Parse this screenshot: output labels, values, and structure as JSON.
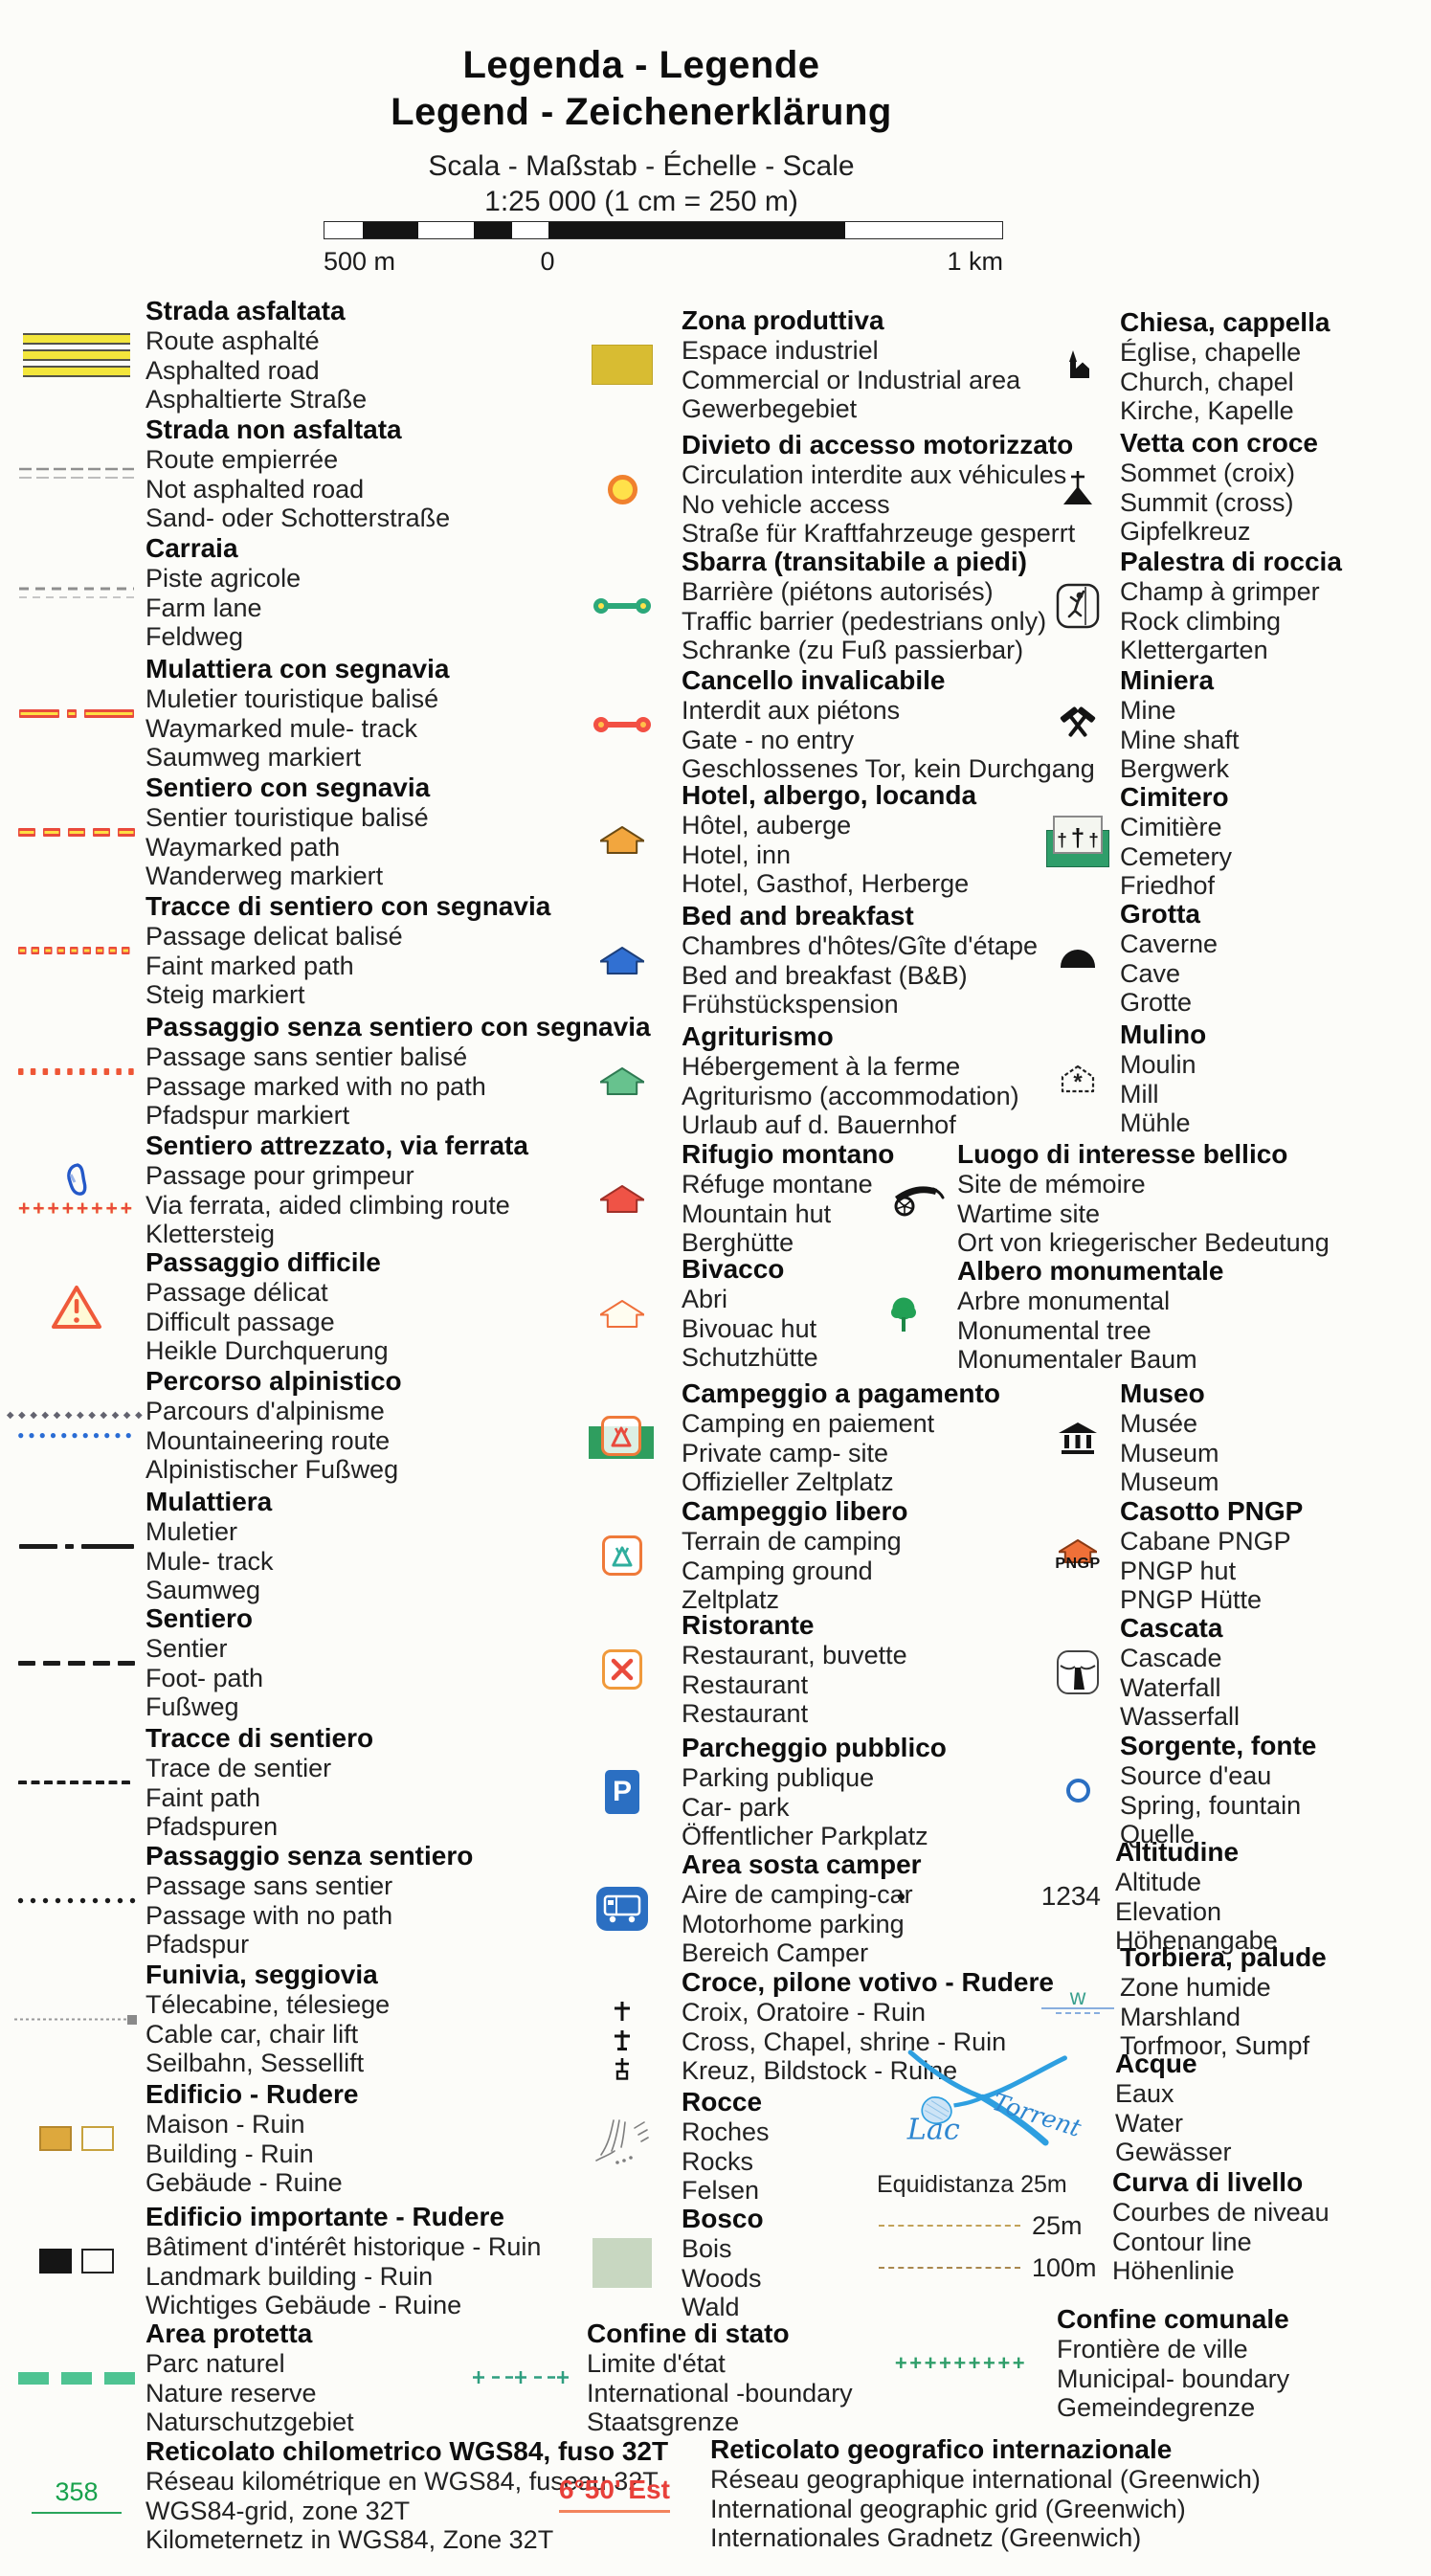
{
  "header": {
    "title_line1": "Legenda - Legende",
    "title_line2": "Legend - Zeichenerklärung",
    "scale_heading": "Scala - Maßstab - Échelle - Scale",
    "scale_value": "1:25 000 (1 cm = 250 m)"
  },
  "scalebar": {
    "label_left": "500 m",
    "label_zero": "0",
    "label_right": "1 km"
  },
  "accent_colors": {
    "trail_red": "#e94a3c",
    "trail_yellow": "#ffdf43",
    "road_yellow": "#f3e63c",
    "park_green": "#2f9e6a",
    "water_blue": "#2e9fe0",
    "sign_blue": "#2b6fc2",
    "grid_green": "#18a14c",
    "grid_red": "#e8403a",
    "hut_orange": "#ef7038"
  },
  "columns": [
    {
      "entries": [
        {
          "icon": "asphalt-road-symbol",
          "sym": "roadAsphalt",
          "title": "Strada asfaltata",
          "lines": [
            "Route asphalté",
            "Asphalted road",
            "Asphaltierte Straße"
          ]
        },
        {
          "icon": "unpaved-road-symbol",
          "sym": "roadUnpaved",
          "title": "Strada non asfaltata",
          "lines": [
            "Route empierrée",
            "Not asphalted road",
            "Sand- oder Schotterstraße"
          ]
        },
        {
          "icon": "farm-lane-symbol",
          "sym": "farmLane",
          "title": "Carraia",
          "lines": [
            "Piste agricole",
            "Farm lane",
            "Feldweg"
          ]
        },
        {
          "icon": "waymarked-mule-track-symbol",
          "sym": "muleMarked",
          "title": "Mulattiera con segnavia",
          "lines": [
            "Muletier touristique balisé",
            "Waymarked mule- track",
            "Saumweg markiert"
          ]
        },
        {
          "icon": "waymarked-path-symbol",
          "sym": "pathMarked",
          "title": "Sentiero con segnavia",
          "lines": [
            "Sentier touristique balisé",
            "Waymarked path",
            "Wanderweg markiert"
          ]
        },
        {
          "icon": "waymarked-faint-path-symbol",
          "sym": "faintMarked",
          "title": "Tracce di sentiero con segnavia",
          "lines": [
            "Passage delicat balisé",
            "Faint marked path",
            "Steig markiert"
          ]
        },
        {
          "icon": "waymarked-no-path-symbol",
          "sym": "noneMarked",
          "title": "Passaggio senza sentiero con segnavia",
          "lines": [
            "Passage sans sentier balisé",
            "Passage marked with no path",
            "Pfadspur markiert"
          ]
        },
        {
          "icon": "via-ferrata-carabiner-icon",
          "sym": "viaFerrata",
          "title": "Sentiero attrezzato, via ferrata",
          "lines": [
            "Passage pour grimpeur",
            "Via ferrata, aided climbing route",
            "Klettersteig"
          ]
        },
        {
          "icon": "warning-triangle-icon",
          "sym": "warnTriangle",
          "title": "Passaggio difficile",
          "lines": [
            "Passage délicat",
            "Difficult passage",
            "Heikle Durchquerung"
          ]
        },
        {
          "icon": "mountaineering-route-symbol",
          "sym": "alpineRoute",
          "title": "Percorso alpinistico",
          "lines": [
            "Parcours d'alpinisme",
            "Mountaineering route",
            "Alpinistischer Fußweg"
          ]
        },
        {
          "icon": "mule-track-symbol",
          "sym": "muleTrack",
          "title": "Mulattiera",
          "lines": [
            "Muletier",
            "Mule- track",
            "Saumweg"
          ]
        },
        {
          "icon": "footpath-symbol",
          "sym": "footPath",
          "title": "Sentiero",
          "lines": [
            "Sentier",
            "Foot- path",
            "Fußweg"
          ]
        },
        {
          "icon": "faint-path-symbol",
          "sym": "faintPath",
          "title": "Tracce di sentiero",
          "lines": [
            "Trace de sentier",
            "Faint path",
            "Pfadspuren"
          ]
        },
        {
          "icon": "no-path-symbol",
          "sym": "nonePath",
          "title": "Passaggio senza sentiero",
          "lines": [
            "Passage sans sentier",
            "Passage with no path",
            "Pfadspur"
          ]
        },
        {
          "icon": "cable-car-symbol",
          "sym": "cableCar",
          "title": "Funivia, seggiovia",
          "lines": [
            "Télecabine, télesiege",
            "Cable car, chair lift",
            "Seilbahn, Sessellift"
          ]
        },
        {
          "icon": "building-ruin-symbol",
          "sym": "ruinPair",
          "title": "Edificio - Rudere",
          "lines": [
            "Maison - Ruin",
            "Building - Ruin",
            "Gebäude - Ruine"
          ]
        },
        {
          "icon": "landmark-building-ruin-symbol",
          "sym": "ruinPairDark",
          "title": "Edificio importante - Rudere",
          "lines": [
            "Bâtiment d'intérêt historique - Ruin",
            "Landmark building - Ruin",
            "Wichtiges Gebäude - Ruine"
          ]
        },
        {
          "icon": "protected-area-symbol",
          "sym": "protArea",
          "title": "Area protetta",
          "lines": [
            "Parc naturel",
            "Nature reserve",
            "Naturschutzgebiet"
          ]
        },
        {
          "icon": "km-grid-symbol",
          "sym": "kmGrid",
          "value": "358",
          "title": "Reticolato chilometrico WGS84, fuso 32T",
          "lines": [
            "Réseau kilométrique en WGS84, fuseau 32T",
            "WGS84-grid, zone 32T",
            "Kilometernetz in WGS84, Zone 32T"
          ]
        }
      ]
    },
    {
      "entries": [
        {
          "icon": "industrial-area-symbol",
          "sym": "industrial",
          "title": "Zona produttiva",
          "lines": [
            "Espace industriel",
            "Commercial or Industrial area",
            "Gewerbegebiet"
          ]
        },
        {
          "icon": "no-vehicle-access-icon",
          "sym": "noVehicle",
          "title": "Divieto di accesso motorizzato",
          "lines": [
            "Circulation interdite aux véhicules",
            "No vehicle access",
            "Straße für Kraftfahrzeuge gesperrt"
          ]
        },
        {
          "icon": "traffic-barrier-icon",
          "sym": "barrier",
          "title": "Sbarra (transitabile a piedi)",
          "lines": [
            "Barrière (piétons autorisés)",
            "Traffic barrier (pedestrians only)",
            "Schranke (zu Fuß passierbar)"
          ]
        },
        {
          "icon": "gate-no-entry-icon",
          "sym": "gate",
          "title": "Cancello invalicabile",
          "lines": [
            "Interdit aux piétons",
            "Gate - no entry",
            "Geschlossenes Tor, kein Durchgang"
          ]
        },
        {
          "icon": "hotel-icon",
          "sym": "houseHotel",
          "title": "Hotel, albergo, locanda",
          "lines": [
            "Hôtel, auberge",
            "Hotel, inn",
            "Hotel, Gasthof, Herberge"
          ]
        },
        {
          "icon": "bed-and-breakfast-icon",
          "sym": "houseBnb",
          "title": "Bed and breakfast",
          "lines": [
            "Chambres d'hôtes/Gîte d'étape",
            "Bed and breakfast (B&B)",
            "Frühstückspension"
          ]
        },
        {
          "icon": "agriturismo-icon",
          "sym": "houseAgri",
          "title": "Agriturismo",
          "lines": [
            "Hébergement à la ferme",
            "Agriturismo (accommodation)",
            "Urlaub auf d. Bauernhof"
          ]
        },
        {
          "icon": "mountain-hut-icon",
          "sym": "houseRifugio",
          "title": "Rifugio montano",
          "lines": [
            "Réfuge montane",
            "Mountain hut",
            "Berghütte"
          ]
        },
        {
          "icon": "bivouac-hut-icon",
          "sym": "houseBivacco",
          "title": "Bivacco",
          "lines": [
            "Abri",
            "Bivouac hut",
            "Schutzhütte"
          ]
        },
        {
          "icon": "paid-camping-icon",
          "sym": "campPaid",
          "title": "Campeggio a pagamento",
          "lines": [
            "Camping en paiement",
            "Private camp- site",
            "Offizieller Zeltplatz"
          ]
        },
        {
          "icon": "free-camping-icon",
          "sym": "campFree",
          "title": "Campeggio libero",
          "lines": [
            "Terrain de camping",
            "Camping ground",
            "Zeltplatz"
          ]
        },
        {
          "icon": "restaurant-icon",
          "sym": "restaurant",
          "title": "Ristorante",
          "lines": [
            "Restaurant, buvette",
            "Restaurant",
            "Restaurant"
          ]
        },
        {
          "icon": "parking-icon",
          "sym": "parking",
          "title": "Parcheggio pubblico",
          "lines": [
            "Parking publique",
            "Car- park",
            "Öffentlicher Parkplatz"
          ]
        },
        {
          "icon": "camper-area-icon",
          "sym": "camperArea",
          "title": "Area sosta camper",
          "lines": [
            "Aire de camping-car",
            "Motorhome parking",
            "Bereich Camper"
          ]
        },
        {
          "icon": "wayside-cross-icons",
          "sym": "crosses",
          "title": "Croce, pilone votivo - Rudere",
          "lines": [
            "Croix, Oratoire - Ruin",
            "Cross, Chapel, shrine - Ruin",
            "Kreuz, Bildstock - Ruine"
          ]
        },
        {
          "icon": "rocks-symbol",
          "sym": "rocks",
          "title": "Rocce",
          "lines": [
            "Roches",
            "Rocks",
            "Felsen"
          ]
        },
        {
          "icon": "woods-symbol",
          "sym": "woods",
          "title": "Bosco",
          "lines": [
            "Bois",
            "Woods",
            "Wald"
          ]
        },
        {
          "icon": "state-border-symbol",
          "sym": "stateBorder",
          "title": "Confine di stato",
          "lines": [
            "Limite d'état",
            "International -boundary",
            "Staatsgrenze"
          ]
        },
        {
          "icon": "geographic-grid-symbol",
          "sym": "geoGrid",
          "value": "6°50' Est",
          "title": "Reticolato geografico internazionale",
          "lines": [
            "Réseau geographique international (Greenwich)",
            "International geographic grid (Greenwich)",
            "Internationales Gradnetz (Greenwich)"
          ]
        }
      ]
    },
    {
      "entries": [
        {
          "icon": "church-icon",
          "sym": "church",
          "title": "Chiesa, cappella",
          "lines": [
            "Église, chapelle",
            "Church, chapel",
            "Kirche, Kapelle"
          ]
        },
        {
          "icon": "summit-cross-icon",
          "sym": "summitCross",
          "title": "Vetta con croce",
          "lines": [
            "Sommet (croix)",
            "Summit (cross)",
            "Gipfelkreuz"
          ]
        },
        {
          "icon": "rock-climbing-icon",
          "sym": "climbing",
          "title": "Palestra di roccia",
          "lines": [
            "Champ à grimper",
            "Rock climbing",
            "Klettergarten"
          ]
        },
        {
          "icon": "mine-icon",
          "sym": "mine",
          "title": "Miniera",
          "lines": [
            "Mine",
            "Mine shaft",
            "Bergwerk"
          ]
        },
        {
          "icon": "cemetery-icon",
          "sym": "cemetery",
          "title": "Cimitero",
          "lines": [
            "Cimitière",
            "Cemetery",
            "Friedhof"
          ]
        },
        {
          "icon": "cave-icon",
          "sym": "cave",
          "title": "Grotta",
          "lines": [
            "Caverne",
            "Cave",
            "Grotte"
          ]
        },
        {
          "icon": "mill-icon",
          "sym": "mill",
          "title": "Mulino",
          "lines": [
            "Moulin",
            "Mill",
            "Mühle"
          ]
        },
        {
          "icon": "cannon-icon",
          "sym": "cannon",
          "title": "Luogo di interesse bellico",
          "lines": [
            "Site de mémoire",
            "Wartime site",
            "Ort von kriegerischer Bedeutung"
          ]
        },
        {
          "icon": "monumental-tree-icon",
          "sym": "tree",
          "title": "Albero monumentale",
          "lines": [
            "Arbre monumental",
            "Monumental tree",
            "Monumentaler Baum"
          ]
        },
        {
          "icon": "museum-icon",
          "sym": "museum",
          "title": "Museo",
          "lines": [
            "Musée",
            "Museum",
            "Museum"
          ]
        },
        {
          "icon": "pngp-hut-icon",
          "sym": "pngpHut",
          "value": "PNGP",
          "title": "Casotto PNGP",
          "lines": [
            "Cabane PNGP",
            "PNGP hut",
            "PNGP Hütte"
          ]
        },
        {
          "icon": "waterfall-icon",
          "sym": "waterfall",
          "title": "Cascata",
          "lines": [
            "Cascade",
            "Waterfall",
            "Wasserfall"
          ]
        },
        {
          "icon": "spring-icon",
          "sym": "spring",
          "title": "Sorgente, fonte",
          "lines": [
            "Source d'eau",
            "Spring, fountain",
            "Quelle"
          ]
        },
        {
          "icon": "elevation-symbol",
          "sym": "elevation",
          "value": "1234",
          "title": "Altitudine",
          "lines": [
            "Altitude",
            "Elevation",
            "Höhenangabe"
          ]
        },
        {
          "icon": "marshland-symbol",
          "sym": "marsh",
          "title": "Torbiera, palude",
          "lines": [
            "Zone humide",
            "Marshland",
            "Torfmoor, Sumpf"
          ]
        },
        {
          "icon": "waters-drawing",
          "sym": "waters",
          "labels": {
            "lake": "Lac",
            "torrent": "Torrent"
          },
          "title": "Acque",
          "lines": [
            "Eaux",
            "Water",
            "Gewässer"
          ]
        },
        {
          "icon": "contour-lines-symbol",
          "sym": "contours",
          "labels": {
            "equidistance": "Equidistanza 25m",
            "c25": "25m",
            "c100": "100m"
          },
          "title": "Curva di livello",
          "lines": [
            "Courbes de niveau",
            "Contour line",
            "Höhenlinie"
          ]
        },
        {
          "icon": "municipal-border-symbol",
          "sym": "muniBorder",
          "title": "Confine comunale",
          "lines": [
            "Frontière de ville",
            "Municipal- boundary",
            "Gemeindegrenze"
          ]
        }
      ]
    }
  ]
}
